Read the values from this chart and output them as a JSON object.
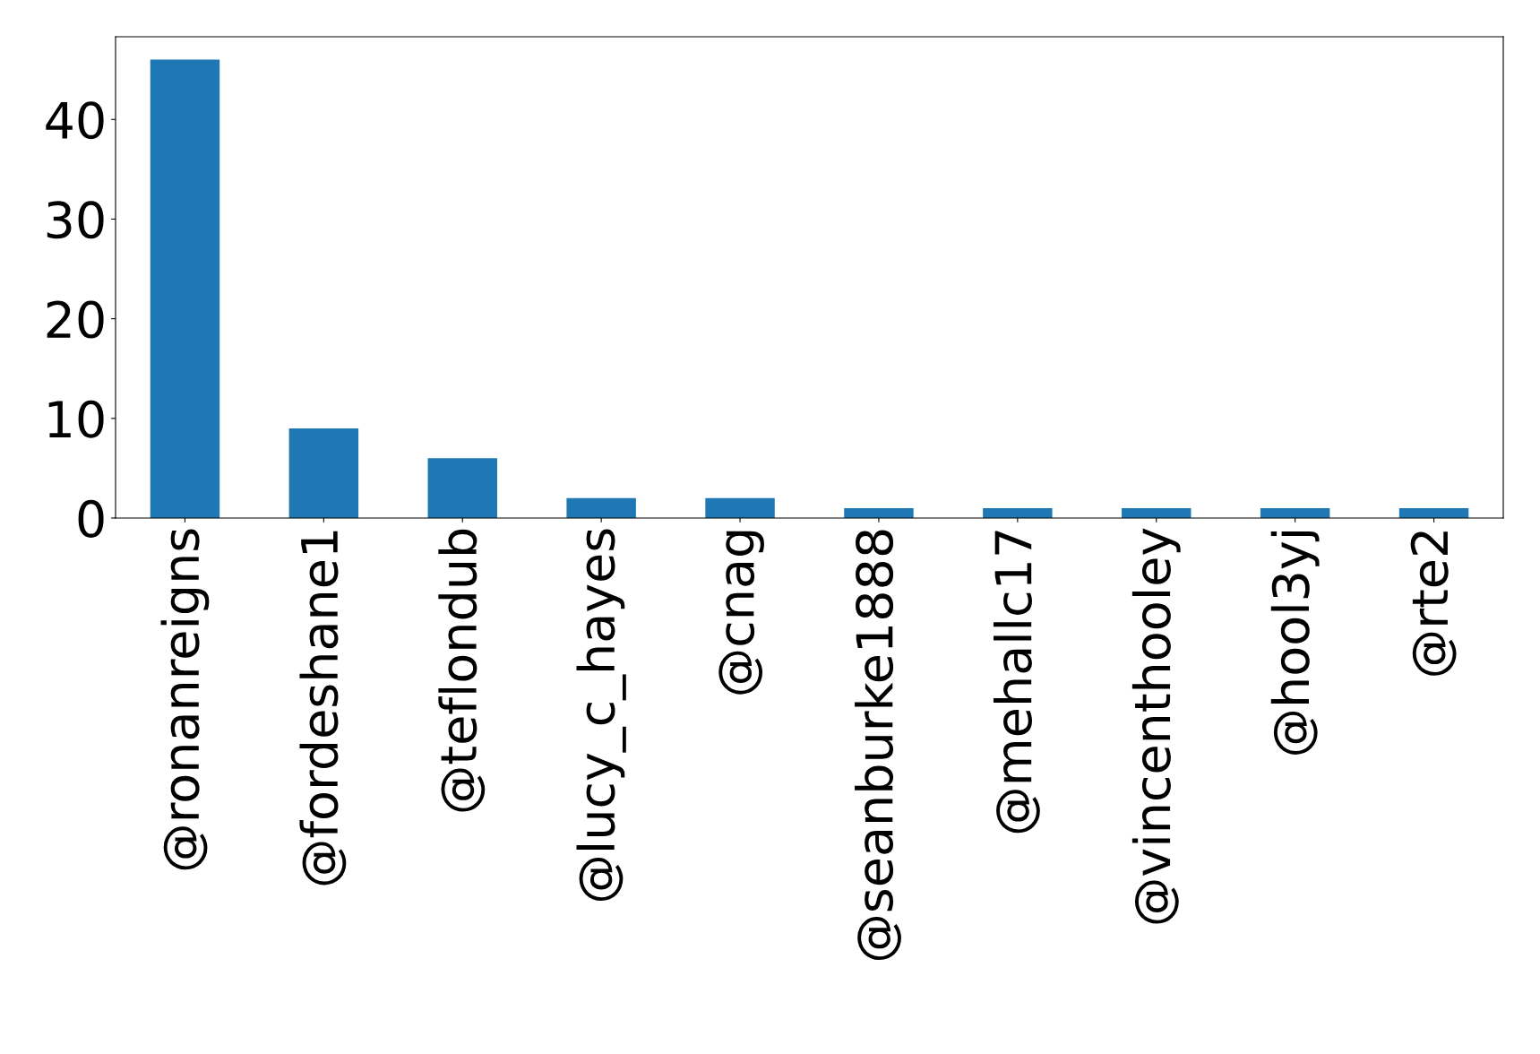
{
  "chart_data": {
    "type": "bar",
    "categories": [
      "@ronanreigns",
      "@fordeshane1",
      "@teflondub",
      "@lucy_c_hayes",
      "@cnag",
      "@seanburke1888",
      "@mehallc17",
      "@vincenthooley",
      "@hool3yj",
      "@rte2"
    ],
    "values": [
      46,
      9,
      6,
      2,
      2,
      1,
      1,
      1,
      1,
      1
    ],
    "color": "#1f77b4",
    "ylim": [
      0,
      48.3
    ],
    "yticks": [
      0,
      10,
      20,
      30,
      40
    ],
    "grid": false,
    "legend": false
  }
}
